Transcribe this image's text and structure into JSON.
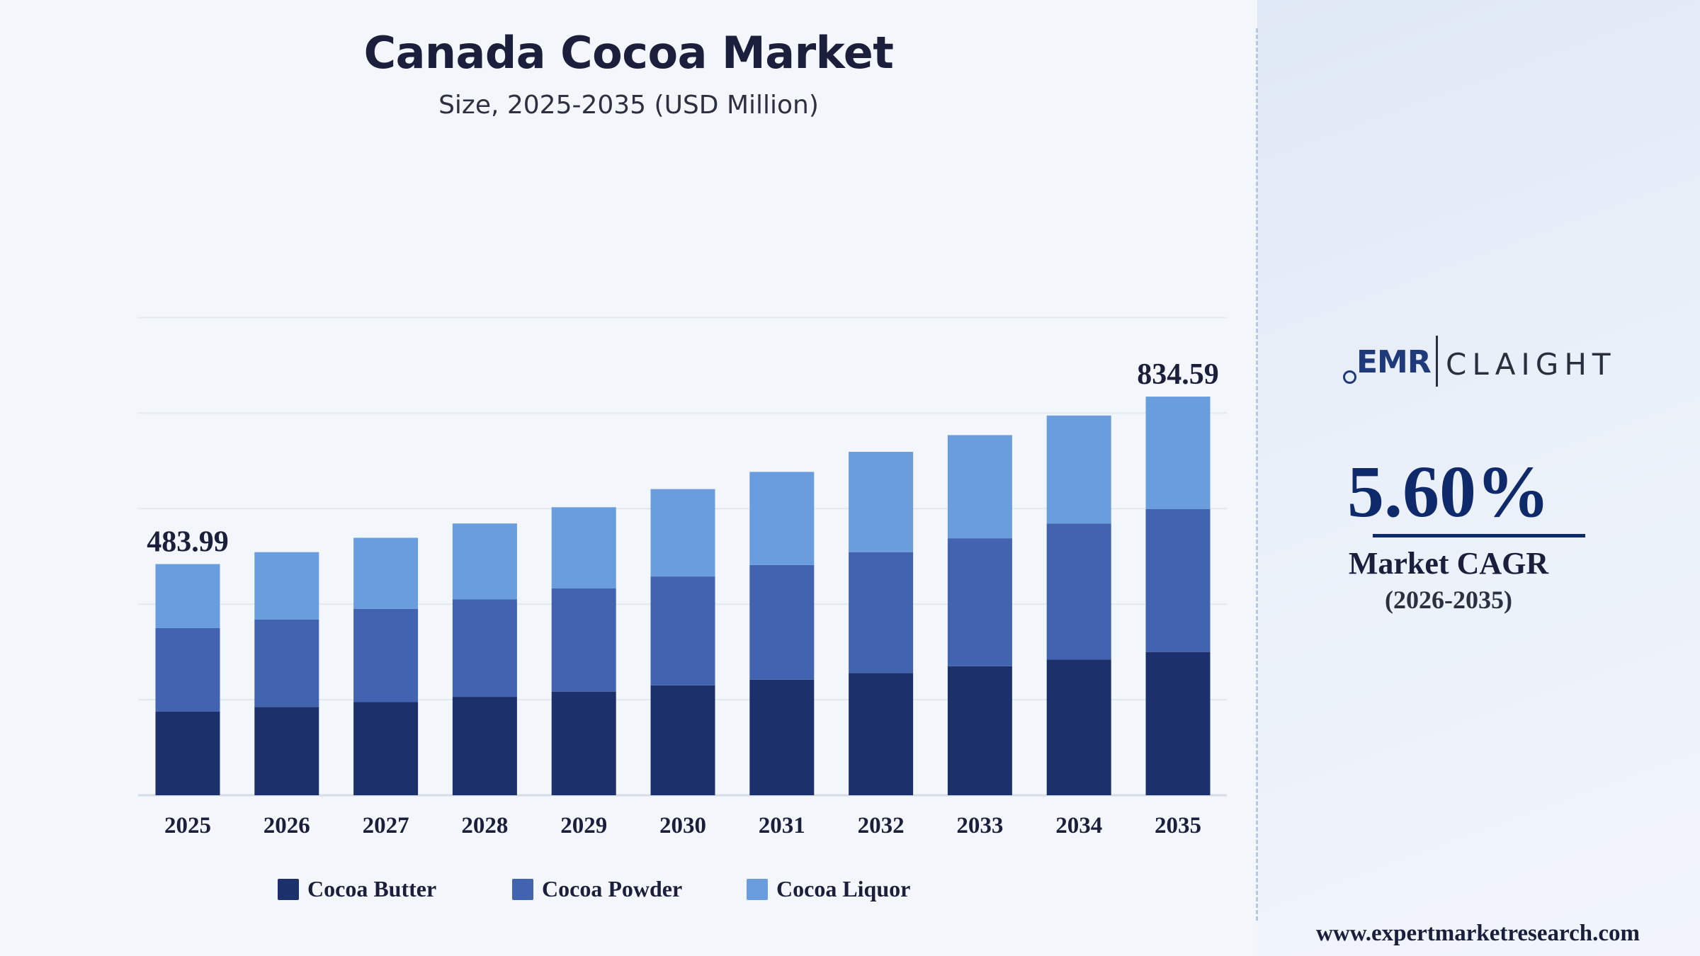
{
  "header": {
    "title": "Canada Cocoa Market",
    "subtitle": "Size, 2025-2035 (USD Million)"
  },
  "chart_data": {
    "type": "bar",
    "stacked": true,
    "categories": [
      "2025",
      "2026",
      "2027",
      "2028",
      "2029",
      "2030",
      "2031",
      "2032",
      "2033",
      "2034",
      "2035"
    ],
    "series": [
      {
        "name": "Cocoa Butter",
        "color": "#1c316c",
        "values": [
          175,
          185,
          195,
          206,
          217,
          230,
          242,
          256,
          270,
          284,
          300
        ]
      },
      {
        "name": "Cocoa Powder",
        "color": "#4263af",
        "values": [
          175,
          183,
          195,
          204,
          216,
          228,
          240,
          253,
          268,
          285,
          299
        ]
      },
      {
        "name": "Cocoa Liquor",
        "color": "#6a9ddd",
        "values": [
          133.99,
          141,
          149,
          159,
          170,
          183,
          195,
          210,
          216,
          226,
          235.59
        ]
      }
    ],
    "totals": [
      483.99,
      509,
      539,
      569,
      603,
      641,
      677,
      719,
      754,
      795,
      834.59
    ],
    "data_labels": [
      {
        "category": "2025",
        "text": "483.99"
      },
      {
        "category": "2035",
        "text": "834.59"
      }
    ],
    "ylim": [
      0,
      1000
    ],
    "grid": true,
    "legend": "bottom"
  },
  "sidebar": {
    "logo_left": "EMR",
    "logo_right": "CLAIGHT",
    "cagr_value": "5.60%",
    "cagr_label": "Market CAGR",
    "cagr_period": "(2026-2035)",
    "website": "www.expertmarketresearch.com"
  }
}
